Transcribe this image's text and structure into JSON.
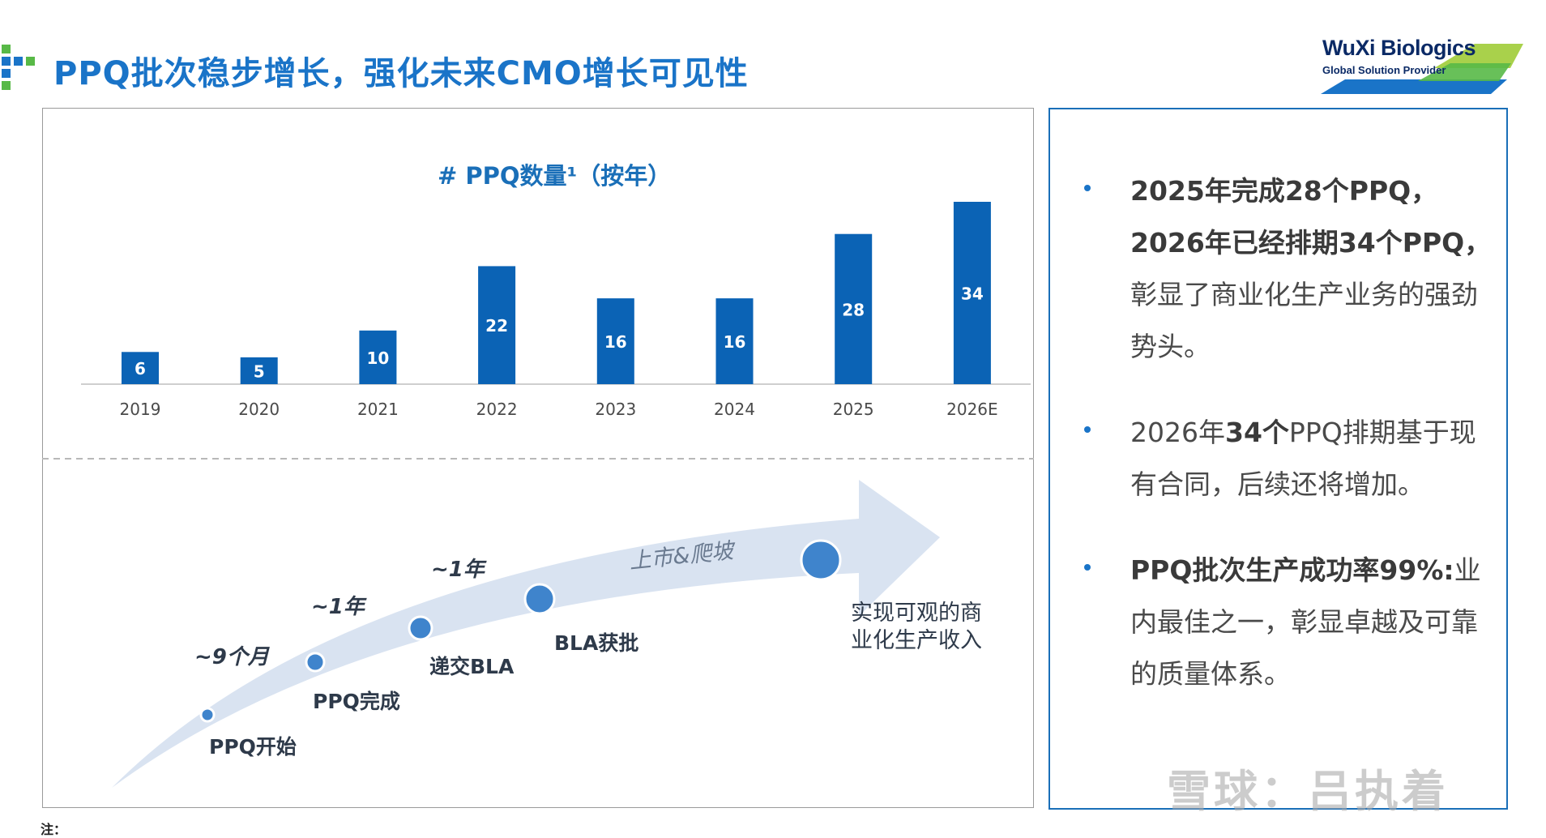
{
  "header": {
    "title": "PPQ批次稳步增长，强化未来CMO增长可见性",
    "brand_color": "#1a74c8",
    "accent_green": "#58b947"
  },
  "logo": {
    "name": "WuXi Biologics",
    "tagline": "Global Solution Provider"
  },
  "chart_data": {
    "type": "bar",
    "title": "# PPQ数量¹（按年）",
    "categories": [
      "2019",
      "2020",
      "2021",
      "2022",
      "2023",
      "2024",
      "2025",
      "2026E"
    ],
    "values": [
      6,
      5,
      10,
      22,
      16,
      16,
      28,
      34
    ],
    "xlabel": "",
    "ylabel": "",
    "ylim": [
      0,
      34
    ],
    "grid": false,
    "bar_color": "#0b63b5"
  },
  "timeline": {
    "stages": [
      {
        "label": "PPQ开始"
      },
      {
        "label": "PPQ完成"
      },
      {
        "label": "递交BLA"
      },
      {
        "label": "BLA获批"
      }
    ],
    "durations": [
      "~9个月",
      "~1年",
      "~1年"
    ],
    "ipo_label": "上市&爬坡",
    "final_label": "实现可观的商\n业化生产收入"
  },
  "bullets": [
    {
      "bold": "2025年完成28个PPQ，2026年已经排期34个PPQ，",
      "text": "彰显了商业化生产业务的强劲势头。"
    },
    {
      "text_pre": "2026年",
      "bold": "34个",
      "text": "PPQ排期基于现有合同，后续还将增加。"
    },
    {
      "bold": "PPQ批次生产成功率99%:",
      "text": "业内最佳之一，彰显卓越及可靠的质量体系。"
    }
  ],
  "footnote": "注：",
  "watermark": "雪球：吕执着"
}
